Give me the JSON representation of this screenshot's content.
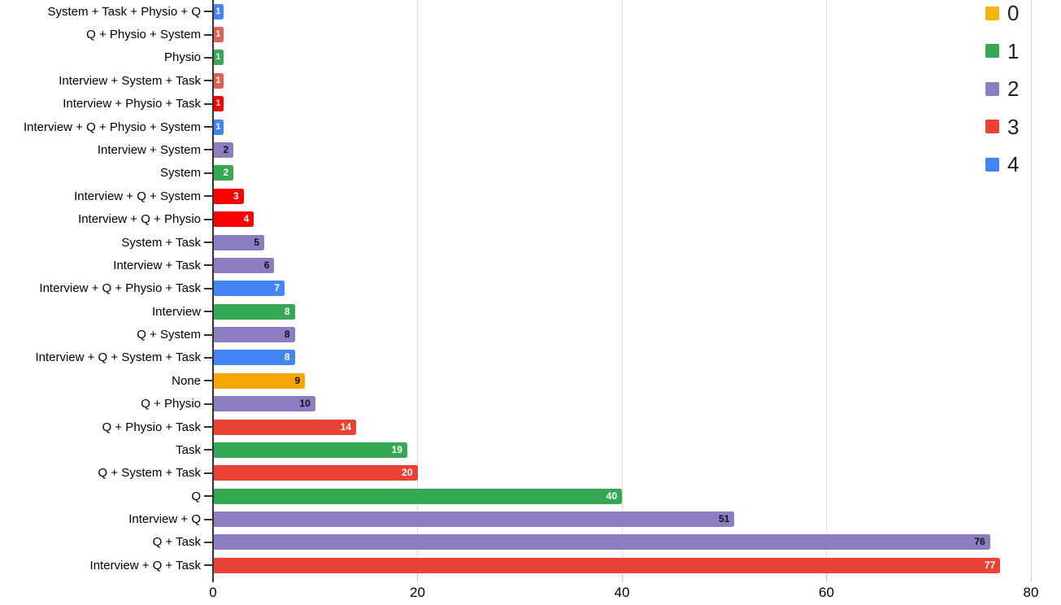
{
  "chart_data": {
    "type": "bar",
    "orientation": "horizontal",
    "title": "",
    "xlabel": "",
    "ylabel": "",
    "xlim": [
      0,
      80
    ],
    "x_ticks": [
      "0",
      "20",
      "40",
      "60",
      "80"
    ],
    "x_tick_values": [
      0,
      20,
      40,
      60,
      80
    ],
    "grid": true,
    "legend_position": "top-right",
    "legend": [
      {
        "label": "0",
        "color": "#F5B50A"
      },
      {
        "label": "1",
        "color": "#34A853"
      },
      {
        "label": "2",
        "color": "#8E7CC3"
      },
      {
        "label": "3",
        "color": "#EA4335"
      },
      {
        "label": "4",
        "color": "#4285F4"
      }
    ],
    "bars": [
      {
        "label": "System + Task + Physio + Q",
        "value": 1,
        "series": "4",
        "color": "#4285F4",
        "value_color": "#ffffff"
      },
      {
        "label": "Q + Physio + System",
        "value": 1,
        "series": "3",
        "color": "#E06055",
        "value_color": "#ffffff"
      },
      {
        "label": "Physio",
        "value": 1,
        "series": "1",
        "color": "#34A853",
        "value_color": "#ffffff"
      },
      {
        "label": "Interview + System + Task",
        "value": 1,
        "series": "3",
        "color": "#E06055",
        "value_color": "#ffffff"
      },
      {
        "label": "Interview + Physio + Task",
        "value": 1,
        "series": "3",
        "color": "#FB0000",
        "value_color": "#ffffff"
      },
      {
        "label": "Interview + Q + Physio + System",
        "value": 1,
        "series": "4",
        "color": "#4285F4",
        "value_color": "#ffffff"
      },
      {
        "label": "Interview + System",
        "value": 2,
        "series": "2",
        "color": "#8E7CC3",
        "value_color": "#111111"
      },
      {
        "label": "System",
        "value": 2,
        "series": "1",
        "color": "#34A853",
        "value_color": "#ffffff"
      },
      {
        "label": "Interview + Q + System",
        "value": 3,
        "series": "3",
        "color": "#FB0000",
        "value_color": "#ffffff"
      },
      {
        "label": "Interview + Q + Physio",
        "value": 4,
        "series": "3",
        "color": "#FB0000",
        "value_color": "#ffffff"
      },
      {
        "label": "System + Task",
        "value": 5,
        "series": "2",
        "color": "#8E7CC3",
        "value_color": "#111111"
      },
      {
        "label": "Interview + Task",
        "value": 6,
        "series": "2",
        "color": "#8E7CC3",
        "value_color": "#111111"
      },
      {
        "label": "Interview + Q + Physio + Task",
        "value": 7,
        "series": "4",
        "color": "#4285F4",
        "value_color": "#ffffff"
      },
      {
        "label": "Interview",
        "value": 8,
        "series": "1",
        "color": "#34A853",
        "value_color": "#ffffff"
      },
      {
        "label": "Q + System",
        "value": 8,
        "series": "2",
        "color": "#8E7CC3",
        "value_color": "#111111"
      },
      {
        "label": "Interview + Q + System + Task",
        "value": 8,
        "series": "4",
        "color": "#4285F4",
        "value_color": "#ffffff"
      },
      {
        "label": "None",
        "value": 9,
        "series": "0",
        "color": "#F9A602",
        "value_color": "#111111"
      },
      {
        "label": "Q + Physio",
        "value": 10,
        "series": "2",
        "color": "#8E7CC3",
        "value_color": "#111111"
      },
      {
        "label": "Q + Physio + Task",
        "value": 14,
        "series": "3",
        "color": "#EA4335",
        "value_color": "#ffffff"
      },
      {
        "label": "Task",
        "value": 19,
        "series": "1",
        "color": "#34A853",
        "value_color": "#ffffff"
      },
      {
        "label": "Q + System + Task",
        "value": 20,
        "series": "3",
        "color": "#EA4335",
        "value_color": "#ffffff"
      },
      {
        "label": "Q",
        "value": 40,
        "series": "1",
        "color": "#34A853",
        "value_color": "#ffffff"
      },
      {
        "label": "Interview + Q",
        "value": 51,
        "series": "2",
        "color": "#8E7CC3",
        "value_color": "#111111"
      },
      {
        "label": "Q + Task",
        "value": 76,
        "series": "2",
        "color": "#8E7CC3",
        "value_color": "#111111"
      },
      {
        "label": "Interview + Q + Task",
        "value": 77,
        "series": "3",
        "color": "#EA4335",
        "value_color": "#ffffff"
      }
    ]
  }
}
